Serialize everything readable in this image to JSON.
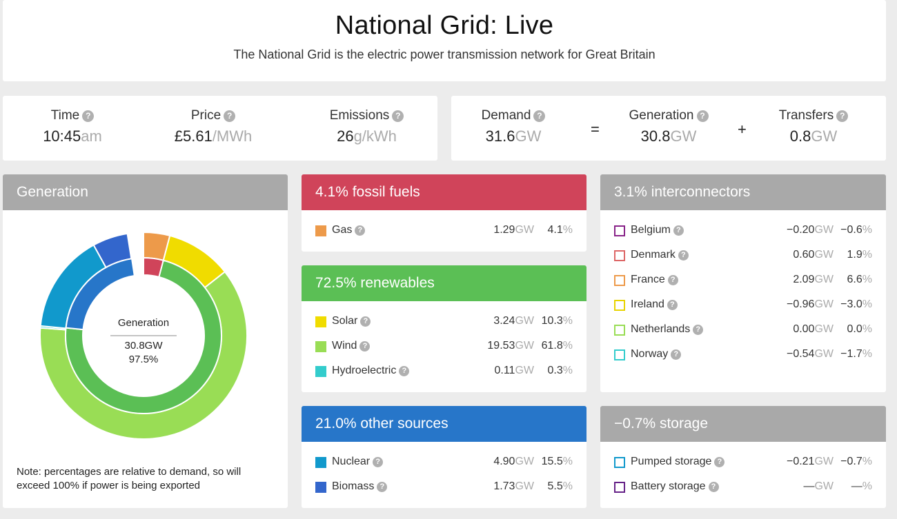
{
  "header": {
    "title": "National Grid: Live",
    "subtitle": "The National Grid is the electric power transmission network for Great Britain"
  },
  "stats": {
    "time": {
      "label": "Time",
      "value": "10:45",
      "unit": "am"
    },
    "price": {
      "label": "Price",
      "value": "£5.61",
      "unit": "/MWh"
    },
    "emissions": {
      "label": "Emissions",
      "value": "26",
      "unit": "g/kWh"
    },
    "demand": {
      "label": "Demand",
      "value": "31.6",
      "unit": "GW"
    },
    "generation": {
      "label": "Generation",
      "value": "30.8",
      "unit": "GW"
    },
    "transfers": {
      "label": "Transfers",
      "value": "0.8",
      "unit": "GW"
    },
    "equals": "=",
    "plus": "+"
  },
  "generation_panel": {
    "title": "Generation",
    "center_label": "Generation",
    "center_gw": "30.8GW",
    "center_pct": "97.5%",
    "note": "Note: percentages are relative to demand, so will exceed 100% if power is being exported"
  },
  "chart_data": {
    "type": "pie",
    "subtype": "nested-donut",
    "inner": [
      {
        "name": "fossil fuels",
        "value": 4.1,
        "color": "#d0445a"
      },
      {
        "name": "renewables",
        "value": 72.5,
        "color": "#5bbf55"
      },
      {
        "name": "other sources",
        "value": 21.0,
        "color": "#2776c9"
      }
    ],
    "outer": [
      {
        "name": "Gas",
        "value": 4.1,
        "color": "#ed9a4a"
      },
      {
        "name": "Solar",
        "value": 10.3,
        "color": "#f0dc00"
      },
      {
        "name": "Wind",
        "value": 61.8,
        "color": "#99dd55"
      },
      {
        "name": "Hydroelectric",
        "value": 0.3,
        "color": "#33cccc"
      },
      {
        "name": "Nuclear",
        "value": 15.5,
        "color": "#1199cc"
      },
      {
        "name": "Biomass",
        "value": 5.5,
        "color": "#3366cc"
      }
    ]
  },
  "fossil": {
    "title": "4.1% fossil fuels",
    "rows": [
      {
        "name": "Gas",
        "gw": "1.29",
        "unit": "GW",
        "pct": "4.1",
        "pct_unit": "%",
        "color": "#ed9a4a"
      }
    ]
  },
  "renewables": {
    "title": "72.5% renewables",
    "rows": [
      {
        "name": "Solar",
        "gw": "3.24",
        "unit": "GW",
        "pct": "10.3",
        "pct_unit": "%",
        "color": "#f0dc00"
      },
      {
        "name": "Wind",
        "gw": "19.53",
        "unit": "GW",
        "pct": "61.8",
        "pct_unit": "%",
        "color": "#99dd55"
      },
      {
        "name": "Hydroelectric",
        "gw": "0.11",
        "unit": "GW",
        "pct": "0.3",
        "pct_unit": "%",
        "color": "#33cccc"
      }
    ]
  },
  "other": {
    "title": "21.0% other sources",
    "rows": [
      {
        "name": "Nuclear",
        "gw": "4.90",
        "unit": "GW",
        "pct": "15.5",
        "pct_unit": "%",
        "color": "#1199cc"
      },
      {
        "name": "Biomass",
        "gw": "1.73",
        "unit": "GW",
        "pct": "5.5",
        "pct_unit": "%",
        "color": "#3366cc"
      }
    ]
  },
  "interconnectors": {
    "title": "3.1% interconnectors",
    "rows": [
      {
        "name": "Belgium",
        "gw": "−0.20",
        "unit": "GW",
        "pct": "−0.6",
        "pct_unit": "%",
        "color": "#882288"
      },
      {
        "name": "Denmark",
        "gw": "0.60",
        "unit": "GW",
        "pct": "1.9",
        "pct_unit": "%",
        "color": "#dd6666"
      },
      {
        "name": "France",
        "gw": "2.09",
        "unit": "GW",
        "pct": "6.6",
        "pct_unit": "%",
        "color": "#ed9a4a"
      },
      {
        "name": "Ireland",
        "gw": "−0.96",
        "unit": "GW",
        "pct": "−3.0",
        "pct_unit": "%",
        "color": "#e8d400"
      },
      {
        "name": "Netherlands",
        "gw": "0.00",
        "unit": "GW",
        "pct": "0.0",
        "pct_unit": "%",
        "color": "#99dd55"
      },
      {
        "name": "Norway",
        "gw": "−0.54",
        "unit": "GW",
        "pct": "−1.7",
        "pct_unit": "%",
        "color": "#33cccc"
      }
    ]
  },
  "storage": {
    "title": "−0.7% storage",
    "rows": [
      {
        "name": "Pumped storage",
        "gw": "−0.21",
        "unit": "GW",
        "pct": "−0.7",
        "pct_unit": "%",
        "color": "#1199cc"
      },
      {
        "name": "Battery storage",
        "gw": "—",
        "unit": "GW",
        "pct": "—",
        "pct_unit": "%",
        "color": "#662288"
      }
    ]
  },
  "icons": {
    "help": "?"
  }
}
